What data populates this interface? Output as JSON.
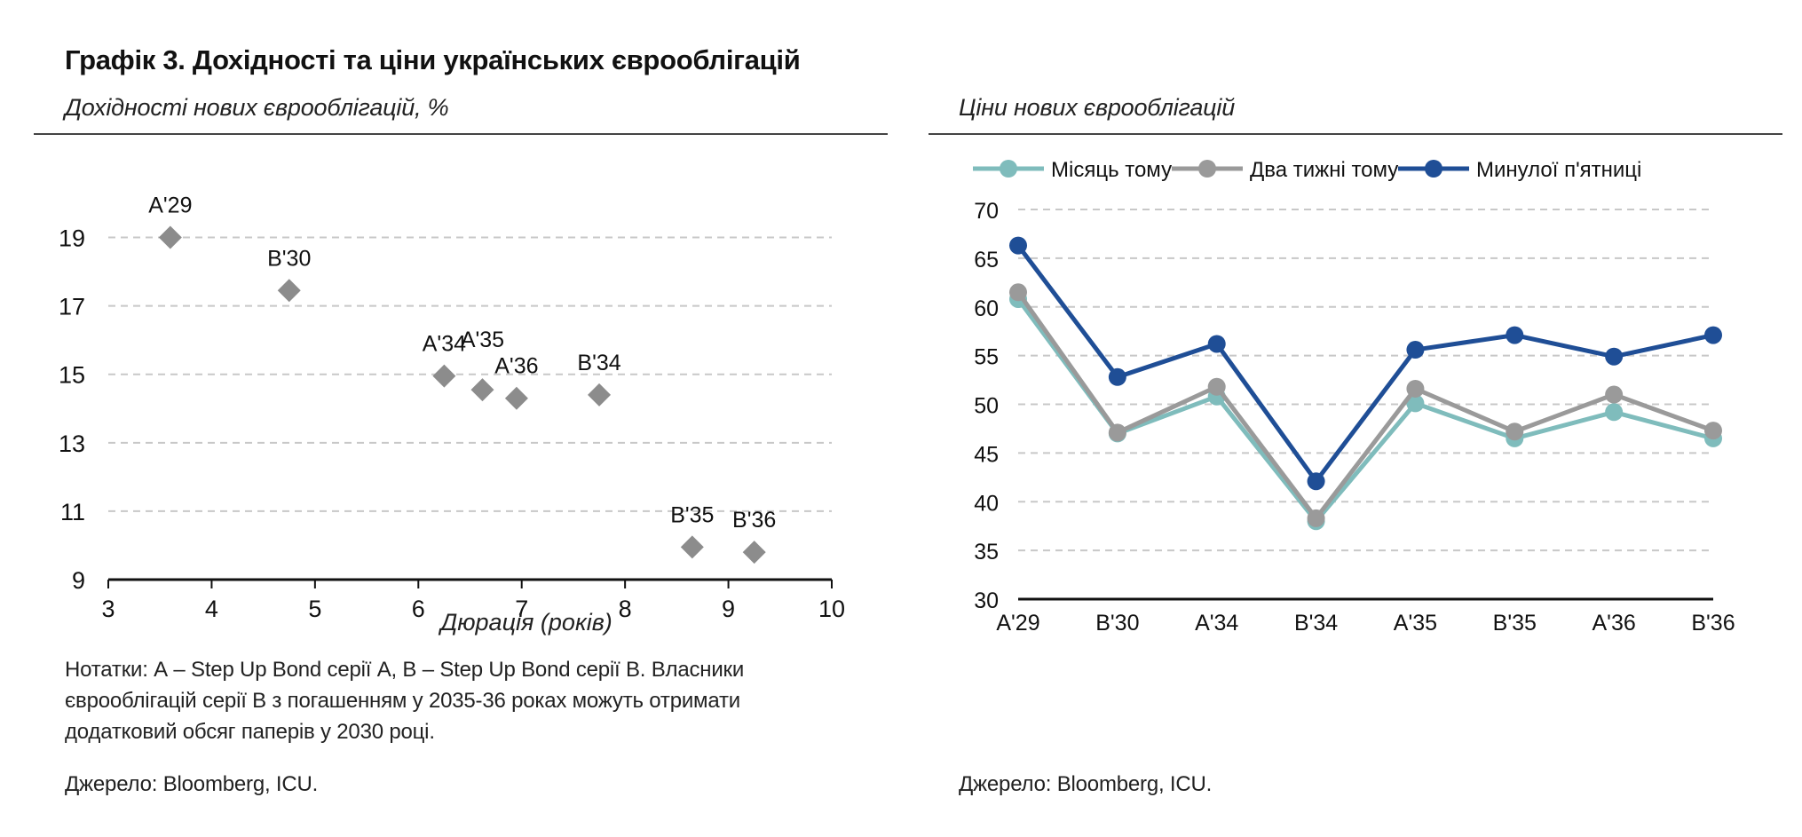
{
  "page_title": "Графік 3. Дохідності та ціни українських єврооблігацій",
  "notes": {
    "left_note_lines": [
      "Нотатки: А – Step Up Bond серії А, В – Step Up Bond серії В. Власники",
      "єврооблігацій серії В з погашенням у 2035-36 роках можуть отримати",
      "додатковий обсяг паперів у 2030 році."
    ],
    "left_source": "Джерело: Bloomberg, ICU.",
    "right_source": "Джерело: Bloomberg, ICU."
  },
  "colors": {
    "scatter_marker": "#8c8c8c",
    "series_month_ago": "#7fbcbc",
    "series_two_weeks_ago": "#9a9a9a",
    "series_last_friday": "#1f4e96",
    "gridline": "#c8c8c8",
    "axis": "#111111"
  },
  "chart_data": [
    {
      "type": "scatter",
      "title": "Дохідності нових єврооблігацій, %",
      "xlabel": "Дюрація (років)",
      "ylabel": "",
      "xlim": [
        3,
        10
      ],
      "ylim": [
        9,
        20
      ],
      "x_ticks": [
        "3",
        "4",
        "5",
        "6",
        "7",
        "8",
        "9",
        "10"
      ],
      "y_ticks": [
        "9",
        "11",
        "13",
        "15",
        "17",
        "19"
      ],
      "grid": "horizontal dashed",
      "marker": "diamond",
      "points": [
        {
          "label": "A'29",
          "x": 3.6,
          "y": 19.0
        },
        {
          "label": "B'30",
          "x": 4.75,
          "y": 17.45
        },
        {
          "label": "A'34",
          "x": 6.25,
          "y": 14.95
        },
        {
          "label": "A'35",
          "x": 6.62,
          "y": 14.55
        },
        {
          "label": "A'36",
          "x": 6.95,
          "y": 14.3
        },
        {
          "label": "B'34",
          "x": 7.75,
          "y": 14.4
        },
        {
          "label": "B'35",
          "x": 8.65,
          "y": 9.95
        },
        {
          "label": "B'36",
          "x": 9.25,
          "y": 9.8
        }
      ]
    },
    {
      "type": "line",
      "title": "Ціни нових єврооблігацій",
      "xlabel": "",
      "ylabel": "",
      "ylim": [
        30,
        70
      ],
      "y_ticks": [
        "30",
        "35",
        "40",
        "45",
        "50",
        "55",
        "60",
        "65",
        "70"
      ],
      "grid": "horizontal dashed",
      "legend_position": "top",
      "categories": [
        "A'29",
        "B'30",
        "A'34",
        "B'34",
        "A'35",
        "B'35",
        "A'36",
        "B'36"
      ],
      "series": [
        {
          "name": "Місяць тому",
          "color_key": "series_month_ago",
          "values": [
            60.8,
            47.0,
            50.8,
            38.0,
            50.1,
            46.5,
            49.2,
            46.5
          ]
        },
        {
          "name": "Два тижні тому",
          "color_key": "series_two_weeks_ago",
          "values": [
            61.5,
            47.1,
            51.8,
            38.3,
            51.6,
            47.2,
            51.0,
            47.3
          ]
        },
        {
          "name": "Минулої п'ятниці",
          "color_key": "series_last_friday",
          "values": [
            66.3,
            52.8,
            56.2,
            42.1,
            55.6,
            57.1,
            54.9,
            57.1
          ]
        }
      ]
    }
  ]
}
